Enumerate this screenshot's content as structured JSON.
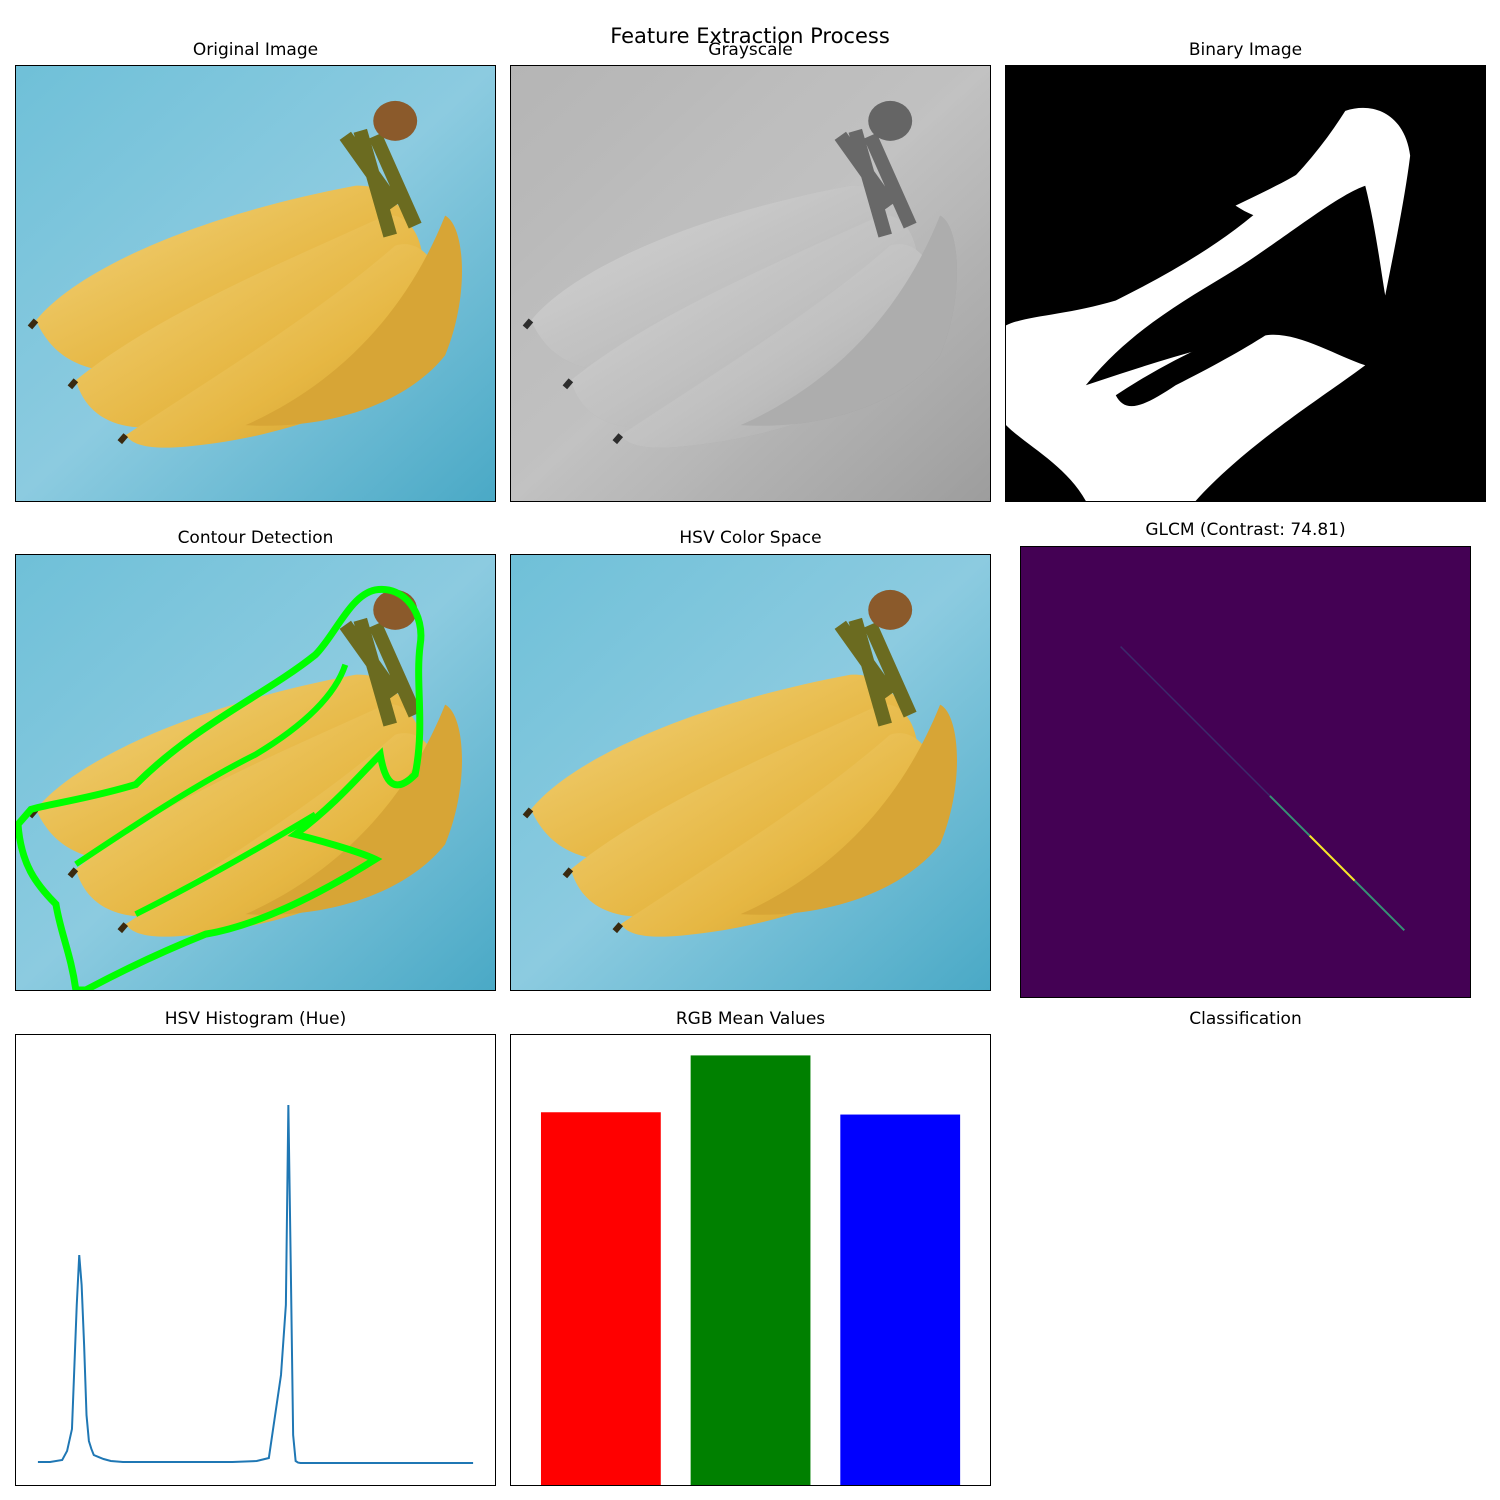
{
  "figure": {
    "suptitle": "Feature Extraction Process"
  },
  "panels": {
    "original": {
      "title": "Original Image"
    },
    "grayscale": {
      "title": "Grayscale"
    },
    "binary": {
      "title": "Binary Image"
    },
    "contour": {
      "title": "Contour Detection"
    },
    "hsv": {
      "title": "HSV Color Space"
    },
    "glcm": {
      "title": "GLCM (Contrast: 74.81)"
    },
    "histogram": {
      "title": "HSV Histogram (Hue)"
    },
    "rgb": {
      "title": "RGB Mean Values"
    },
    "classification": {
      "title": "Classification"
    }
  },
  "colors": {
    "background_blue": "#67b6cf",
    "banana_yellow": "#e8bd4e",
    "contour_green": "#00ff00",
    "viridis_dark": "#440154",
    "hist_line": "#1f77b4"
  },
  "chart_data": [
    {
      "type": "line",
      "title": "HSV Histogram (Hue)",
      "x": [
        0,
        5,
        10,
        12,
        14,
        16,
        17,
        18,
        19,
        20,
        21,
        22,
        23,
        25,
        27,
        30,
        35,
        40,
        50,
        60,
        70,
        80,
        90,
        95,
        100,
        102,
        103,
        104,
        105,
        106,
        107,
        108,
        110,
        115,
        120,
        140,
        160,
        179
      ],
      "y": [
        150,
        150,
        250,
        700,
        1800,
        8000,
        10500,
        9000,
        6000,
        2500,
        1200,
        800,
        500,
        400,
        300,
        200,
        150,
        150,
        150,
        150,
        150,
        150,
        200,
        350,
        4500,
        8000,
        18000,
        10000,
        1500,
        200,
        120,
        100,
        100,
        100,
        100,
        100,
        100,
        100
      ],
      "xlim": [
        -9,
        188
      ],
      "ylim": [
        -1000,
        21500
      ],
      "grid": false
    },
    {
      "type": "bar",
      "title": "RGB Mean Values",
      "categories": [
        "R",
        "G",
        "B"
      ],
      "values": [
        164.0,
        189.0,
        163.0
      ],
      "colors": [
        "#ff0000",
        "#008000",
        "#0000ff"
      ],
      "ylim": [
        0,
        198
      ],
      "grid": false
    },
    {
      "type": "heatmap",
      "title": "GLCM (Contrast: 74.81)",
      "size": 256,
      "diagonal_intensity_range": [
        0.0,
        1.0
      ],
      "colormap": "viridis"
    }
  ]
}
